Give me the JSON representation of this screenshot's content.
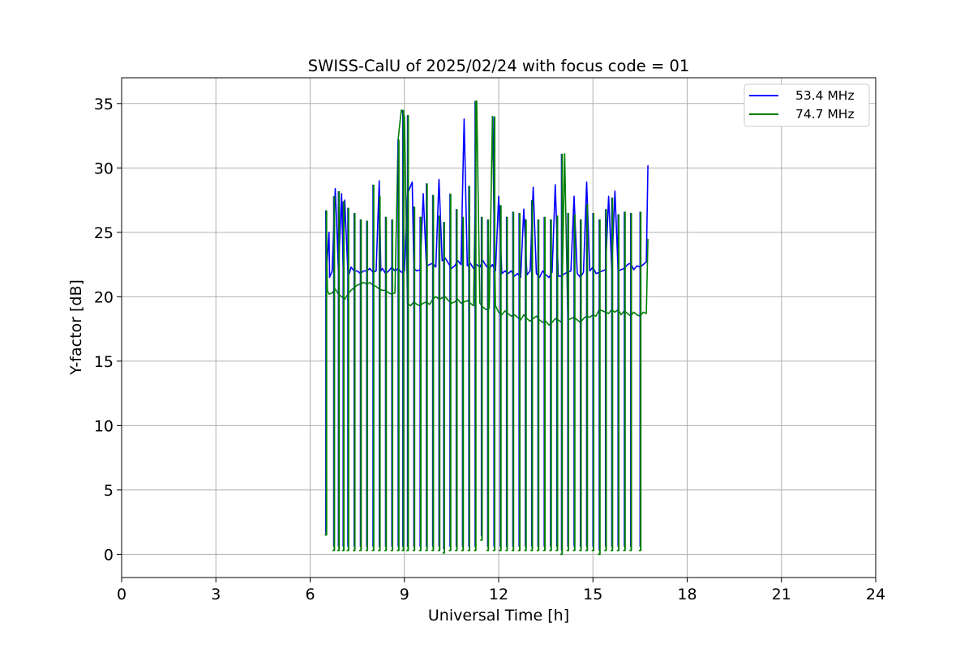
{
  "chart_data": {
    "type": "line",
    "title": "SWISS-CalU of 2025/02/24 with focus code = 01",
    "xlabel": "Universal Time [h]",
    "ylabel": "Y-factor [dB]",
    "xlim": [
      0,
      24
    ],
    "ylim": [
      -1.8,
      37
    ],
    "xticks": [
      0,
      3,
      6,
      9,
      12,
      15,
      18,
      21,
      24
    ],
    "yticks": [
      0,
      5,
      10,
      15,
      20,
      25,
      30,
      35
    ],
    "grid": true,
    "legend_position": "top-right",
    "series": [
      {
        "name": "53.4 MHz",
        "color": "#0000ff",
        "x": [
          6.5,
          6.52,
          6.6,
          6.62,
          6.7,
          6.8,
          6.9,
          7.0,
          7.05,
          7.1,
          7.2,
          7.25,
          7.3,
          7.4,
          7.5,
          7.6,
          7.7,
          7.8,
          7.9,
          8.0,
          8.1,
          8.2,
          8.25,
          8.3,
          8.4,
          8.5,
          8.6,
          8.7,
          8.8,
          8.9,
          9.0,
          9.1,
          9.25,
          9.3,
          9.4,
          9.5,
          9.6,
          9.7,
          9.8,
          9.9,
          10.0,
          10.1,
          10.2,
          10.3,
          10.4,
          10.5,
          10.6,
          10.7,
          10.8,
          10.9,
          11.0,
          11.1,
          11.2,
          11.3,
          11.4,
          11.5,
          11.6,
          11.7,
          11.8,
          11.9,
          12.0,
          12.1,
          12.2,
          12.3,
          12.4,
          12.5,
          12.6,
          12.7,
          12.8,
          12.9,
          13.0,
          13.1,
          13.2,
          13.3,
          13.4,
          13.5,
          13.6,
          13.7,
          13.8,
          13.9,
          14.0,
          14.1,
          14.2,
          14.3,
          14.4,
          14.5,
          14.6,
          14.7,
          14.8,
          14.9,
          15.0,
          15.1,
          15.2,
          15.3,
          15.4,
          15.5,
          15.6,
          15.7,
          15.8,
          15.9,
          16.0,
          16.1,
          16.2,
          16.3,
          16.4,
          16.5,
          16.6,
          16.7,
          16.75
        ],
        "y": [
          1.5,
          22.0,
          25.0,
          21.5,
          22.0,
          28.4,
          22.0,
          28.0,
          22.3,
          27.5,
          22.0,
          21.8,
          22.3,
          22.0,
          22.0,
          21.8,
          22.0,
          22.0,
          22.2,
          21.9,
          22.0,
          29.0,
          22.0,
          22.2,
          21.8,
          22.0,
          22.3,
          22.0,
          22.2,
          21.9,
          22.0,
          28.0,
          28.9,
          22.2,
          22.0,
          22.1,
          28.0,
          22.4,
          22.5,
          22.6,
          22.3,
          29.1,
          22.8,
          23.0,
          22.6,
          22.2,
          22.4,
          22.8,
          22.5,
          33.8,
          22.4,
          22.6,
          22.2,
          22.5,
          22.3,
          22.8,
          22.4,
          22.2,
          22.5,
          22.0,
          27.8,
          21.8,
          22.0,
          21.8,
          22.0,
          21.6,
          21.8,
          21.5,
          26.8,
          21.7,
          22.0,
          28.5,
          21.8,
          21.5,
          22.0,
          21.7,
          21.5,
          21.9,
          28.7,
          21.6,
          21.6,
          21.8,
          21.9,
          22.0,
          27.8,
          21.8,
          21.5,
          21.9,
          28.9,
          22.0,
          22.3,
          21.8,
          21.9,
          22.0,
          22.1,
          27.8,
          22.2,
          28.2,
          22.0,
          22.1,
          22.2,
          22.5,
          22.6,
          22.1,
          22.4,
          22.3,
          22.5,
          22.7,
          30.2
        ]
      },
      {
        "name": "74.7 MHz",
        "color": "#008000",
        "x": [
          6.5,
          6.55,
          6.6,
          6.7,
          6.8,
          6.9,
          7.0,
          7.1,
          7.2,
          7.3,
          7.4,
          7.5,
          7.6,
          7.7,
          7.8,
          7.9,
          8.0,
          8.1,
          8.2,
          8.3,
          8.4,
          8.5,
          8.6,
          8.7,
          8.8,
          8.9,
          9.0,
          9.1,
          9.2,
          9.3,
          9.4,
          9.5,
          9.6,
          9.7,
          9.8,
          9.9,
          10.0,
          10.1,
          10.2,
          10.3,
          10.4,
          10.5,
          10.6,
          10.7,
          10.8,
          10.9,
          11.0,
          11.1,
          11.2,
          11.3,
          11.4,
          11.5,
          11.6,
          11.7,
          11.8,
          11.9,
          12.0,
          12.1,
          12.2,
          12.3,
          12.4,
          12.5,
          12.6,
          12.7,
          12.8,
          12.9,
          13.0,
          13.1,
          13.2,
          13.3,
          13.4,
          13.5,
          13.6,
          13.7,
          13.8,
          13.9,
          14.0,
          14.1,
          14.2,
          14.3,
          14.4,
          14.5,
          14.6,
          14.7,
          14.8,
          14.9,
          15.0,
          15.1,
          15.2,
          15.3,
          15.4,
          15.5,
          15.6,
          15.7,
          15.8,
          15.9,
          16.0,
          16.1,
          16.2,
          16.3,
          16.4,
          16.5,
          16.6,
          16.7,
          16.75
        ],
        "y": [
          26.7,
          20.5,
          20.2,
          20.3,
          20.6,
          20.2,
          20.0,
          19.8,
          20.2,
          20.5,
          20.7,
          20.9,
          21.0,
          21.1,
          21.0,
          21.1,
          20.9,
          20.8,
          20.6,
          20.5,
          20.5,
          20.3,
          20.2,
          20.3,
          32.2,
          34.5,
          34.0,
          19.5,
          19.3,
          19.6,
          19.4,
          19.3,
          19.5,
          19.6,
          19.4,
          19.8,
          20.0,
          19.8,
          19.9,
          20.0,
          19.7,
          19.5,
          19.6,
          19.8,
          19.5,
          19.6,
          19.7,
          19.5,
          19.3,
          35.2,
          19.5,
          19.2,
          19.0,
          19.1,
          34.0,
          19.3,
          18.8,
          18.6,
          18.9,
          18.7,
          18.5,
          18.6,
          18.4,
          18.2,
          18.6,
          18.3,
          18.1,
          18.3,
          18.5,
          18.2,
          18.0,
          18.1,
          17.8,
          18.0,
          18.3,
          18.2,
          18.0,
          31.1,
          18.2,
          18.3,
          18.4,
          18.2,
          18.0,
          18.3,
          18.5,
          18.4,
          18.6,
          18.5,
          19.0,
          18.9,
          18.8,
          18.7,
          19.0,
          18.8,
          19.0,
          18.6,
          18.9,
          18.7,
          18.5,
          18.8,
          18.6,
          18.5,
          18.8,
          18.7,
          24.5
        ]
      }
    ],
    "drops": {
      "x": [
        6.5,
        6.75,
        6.9,
        7.05,
        7.2,
        7.4,
        7.6,
        7.8,
        8.0,
        8.2,
        8.4,
        8.6,
        8.8,
        8.95,
        9.1,
        9.3,
        9.5,
        9.7,
        9.9,
        10.1,
        10.25,
        10.45,
        10.65,
        10.85,
        11.05,
        11.25,
        11.45,
        11.65,
        11.85,
        12.05,
        12.25,
        12.45,
        12.65,
        12.85,
        13.05,
        13.25,
        13.45,
        13.65,
        13.85,
        14.0,
        14.2,
        14.4,
        14.6,
        14.8,
        15.0,
        15.2,
        15.4,
        15.6,
        15.8,
        16.0,
        16.2,
        16.5
      ],
      "y": [
        1.5,
        0.3,
        0.3,
        0.3,
        0.3,
        0.3,
        0.3,
        0.3,
        0.3,
        0.3,
        0.3,
        0.3,
        0.3,
        0.3,
        0.3,
        0.3,
        0.3,
        0.3,
        0.3,
        0.3,
        0.1,
        0.3,
        0.3,
        0.3,
        0.3,
        0.3,
        1.1,
        0.3,
        0.3,
        0.3,
        0.3,
        0.3,
        0.3,
        0.3,
        0.3,
        0.3,
        0.3,
        0.3,
        0.3,
        0.0,
        0.3,
        0.3,
        0.3,
        0.3,
        0.3,
        0.0,
        0.3,
        0.3,
        0.3,
        0.3,
        0.3,
        0.3
      ],
      "peak": [
        26.7,
        27.8,
        28.2,
        27.4,
        26.9,
        26.5,
        26.0,
        25.9,
        28.7,
        27.8,
        26.2,
        26.0,
        32.2,
        34.5,
        34.1,
        27.0,
        26.2,
        28.8,
        27.9,
        26.3,
        25.8,
        28.0,
        26.8,
        26.2,
        28.6,
        35.2,
        26.2,
        26.0,
        34.0,
        27.1,
        26.2,
        26.6,
        26.5,
        26.0,
        27.5,
        26.0,
        26.2,
        26.0,
        26.3,
        31.1,
        26.5,
        26.4,
        26.0,
        27.2,
        26.5,
        26.0,
        26.8,
        27.7,
        26.4,
        26.6,
        26.5,
        26.6
      ]
    }
  }
}
